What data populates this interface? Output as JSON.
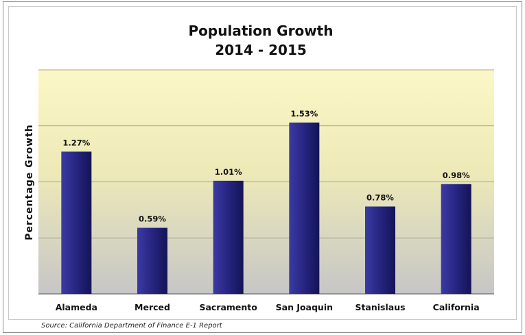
{
  "chart_data": {
    "type": "bar",
    "title": "Population Growth",
    "subtitle": "2014 - 2015",
    "xlabel": "",
    "ylabel": "Percentage Growth",
    "categories": [
      "Alameda",
      "Merced",
      "Sacramento",
      "San Joaquin",
      "Stanislaus",
      "California"
    ],
    "values": [
      1.27,
      0.59,
      1.01,
      1.53,
      0.78,
      0.98
    ],
    "value_labels": [
      "1.27%",
      "0.59%",
      "1.01%",
      "1.53%",
      "0.78%",
      "0.98%"
    ],
    "ylim": [
      0,
      2.0
    ],
    "grid": true,
    "legend": "none",
    "bar_color": "#2b2a8a",
    "background_top": "#fbf7c6",
    "background_bottom": "#c7c7c7",
    "source": "Source: California Department of Finance E-1 Report"
  }
}
